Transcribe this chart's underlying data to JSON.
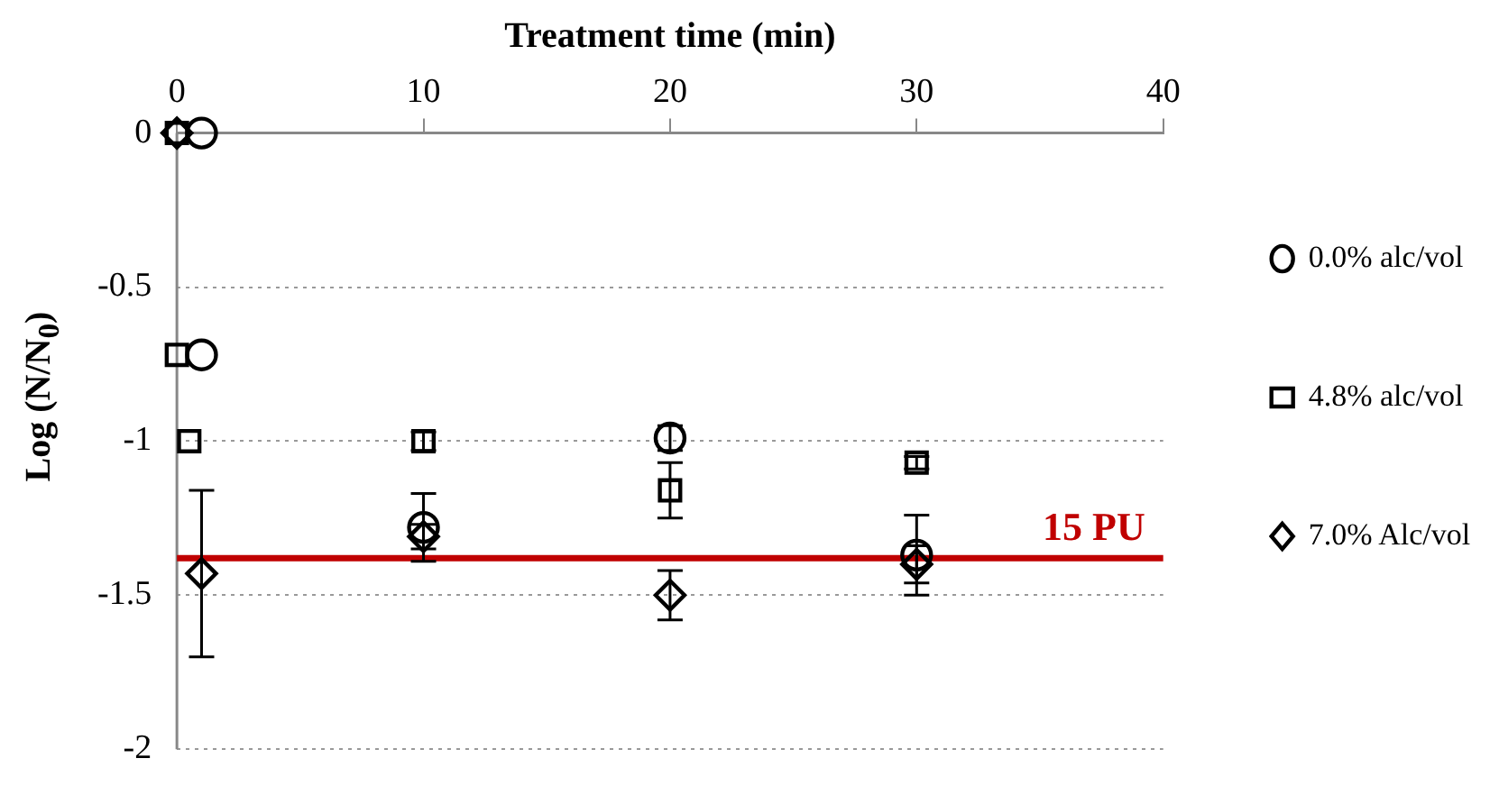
{
  "chart_data": {
    "type": "scatter",
    "xlabel": "Treatment time (min)",
    "ylabel": "Log (N/N$_{0}$)",
    "xlim": [
      0,
      40
    ],
    "xticks": [
      0,
      10,
      20,
      30,
      40
    ],
    "ylim": [
      -2,
      0
    ],
    "yticks": [
      0,
      -0.5,
      -1,
      -1.5,
      -2
    ],
    "grid": "y",
    "legend": "right",
    "series": [
      {
        "name": "0.0% alc/vol",
        "color": "#000000",
        "marker": "circle",
        "x": [
          1,
          1,
          10,
          20,
          30
        ],
        "values": [
          0,
          -0.72,
          -1.28,
          -0.99,
          -1.37
        ],
        "errors": [
          null,
          null,
          0.11,
          0.04,
          0.13
        ]
      },
      {
        "name": "4.8% alc/vol",
        "color": "#000000",
        "marker": "square",
        "x": [
          0,
          0,
          0.5,
          10,
          20,
          30
        ],
        "values": [
          0,
          -0.72,
          -1,
          -1,
          -1.16,
          -1.07
        ],
        "errors": [
          null,
          null,
          null,
          0.03,
          0.09,
          0.02
        ]
      },
      {
        "name": "7.0% Alc/vol",
        "color": "#000000",
        "marker": "diamond",
        "x": [
          0,
          1,
          10,
          20,
          30
        ],
        "values": [
          0,
          -1.43,
          -1.31,
          -1.5,
          -1.4
        ],
        "errors": [
          null,
          0.27,
          0.04,
          0.08,
          0.06
        ]
      }
    ],
    "ref_lines": [
      {
        "axis": "y",
        "value": -1.38,
        "label": "15 PU",
        "color": "#c00000"
      }
    ]
  }
}
